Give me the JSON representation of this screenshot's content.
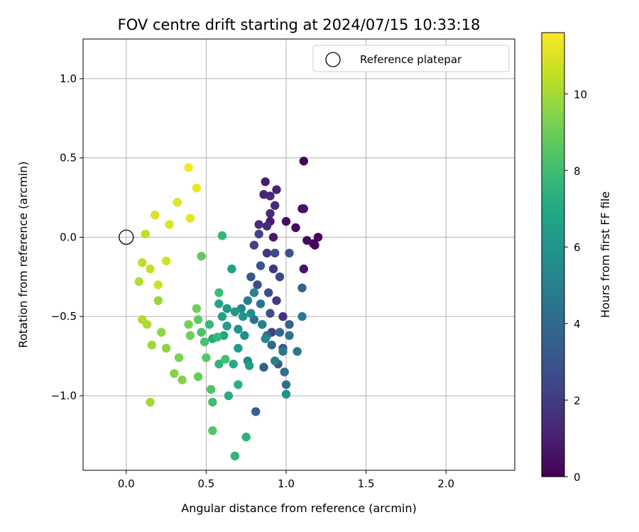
{
  "chart_data": {
    "type": "scatter",
    "title": "FOV centre drift starting at 2024/07/15 10:33:18",
    "xlabel": "Angular distance from reference (arcmin)",
    "ylabel": "Rotation from reference (arcmin)",
    "xlim": [
      -0.27,
      2.43
    ],
    "ylim": [
      -1.47,
      1.25
    ],
    "xticks": [
      0.0,
      0.5,
      1.0,
      1.5,
      2.0
    ],
    "xtick_labels": [
      "0.0",
      "0.5",
      "1.0",
      "1.5",
      "2.0"
    ],
    "yticks": [
      1.0,
      0.5,
      0.0,
      -0.5,
      -1.0
    ],
    "ytick_labels": [
      "1.0",
      "0.5",
      "0.0",
      "−0.5",
      "−1.0"
    ],
    "grid": true,
    "legend": {
      "position": "top-right",
      "entries": [
        "Reference platepar"
      ]
    },
    "colorbar": {
      "label": "Hours from first FF file",
      "range": [
        0,
        11.6
      ],
      "ticks": [
        0,
        2,
        4,
        6,
        8,
        10
      ],
      "tick_labels": [
        "0",
        "2",
        "4",
        "6",
        "8",
        "10"
      ],
      "colormap": "viridis"
    },
    "reference_point": {
      "x": 0.0,
      "y": 0.0
    },
    "points": [
      [
        1.11,
        0.48,
        0.1
      ],
      [
        1.2,
        0.0,
        0.1
      ],
      [
        1.17,
        -0.04,
        0.2
      ],
      [
        1.18,
        -0.05,
        0.2
      ],
      [
        1.13,
        -0.02,
        0.3
      ],
      [
        1.06,
        0.06,
        0.3
      ],
      [
        1.0,
        0.1,
        0.4
      ],
      [
        1.1,
        0.18,
        0.5
      ],
      [
        1.11,
        0.18,
        0.6
      ],
      [
        1.11,
        -0.2,
        0.7
      ],
      [
        0.92,
        0.0,
        0.8
      ],
      [
        0.9,
        0.1,
        0.9
      ],
      [
        0.87,
        0.35,
        1.0
      ],
      [
        0.94,
        0.3,
        1.1
      ],
      [
        0.86,
        0.27,
        1.2
      ],
      [
        0.9,
        0.26,
        1.3
      ],
      [
        0.93,
        0.2,
        1.4
      ],
      [
        0.9,
        0.15,
        1.4
      ],
      [
        0.88,
        0.07,
        1.5
      ],
      [
        0.83,
        0.08,
        1.6
      ],
      [
        0.98,
        -0.5,
        1.6
      ],
      [
        0.88,
        -0.1,
        1.7
      ],
      [
        0.92,
        -0.2,
        1.8
      ],
      [
        0.85,
        -0.55,
        1.9
      ],
      [
        0.94,
        -0.4,
        2.0
      ],
      [
        0.91,
        -0.6,
        2.1
      ],
      [
        0.8,
        -0.05,
        2.2
      ],
      [
        0.83,
        0.02,
        2.3
      ],
      [
        0.96,
        -0.25,
        2.4
      ],
      [
        0.93,
        -0.1,
        2.5
      ],
      [
        0.89,
        -0.35,
        2.6
      ],
      [
        0.82,
        -0.3,
        2.7
      ],
      [
        0.9,
        -0.48,
        2.8
      ],
      [
        0.98,
        -0.7,
        2.9
      ],
      [
        1.02,
        -0.1,
        3.0
      ],
      [
        0.84,
        -0.18,
        3.1
      ],
      [
        0.78,
        -0.25,
        3.2
      ],
      [
        0.95,
        -0.8,
        3.3
      ],
      [
        0.86,
        -0.82,
        3.4
      ],
      [
        0.81,
        -1.1,
        3.5
      ],
      [
        1.1,
        -0.32,
        3.6
      ],
      [
        1.02,
        -0.55,
        3.7
      ],
      [
        0.96,
        -0.6,
        3.8
      ],
      [
        0.88,
        -0.62,
        3.9
      ],
      [
        0.91,
        -0.68,
        4.0
      ],
      [
        0.99,
        -0.85,
        4.1
      ],
      [
        1.0,
        -0.93,
        4.2
      ],
      [
        1.02,
        -0.62,
        4.3
      ],
      [
        0.8,
        -0.52,
        4.4
      ],
      [
        0.84,
        -0.42,
        4.5
      ],
      [
        1.07,
        -0.72,
        4.6
      ],
      [
        0.98,
        -0.72,
        4.7
      ],
      [
        1.1,
        -0.5,
        4.8
      ],
      [
        0.76,
        -0.4,
        4.9
      ],
      [
        0.93,
        -0.78,
        5.0
      ],
      [
        0.85,
        -0.55,
        5.1
      ],
      [
        0.8,
        -0.35,
        5.2
      ],
      [
        0.72,
        -0.45,
        5.3
      ],
      [
        0.87,
        -0.64,
        5.4
      ],
      [
        0.76,
        -0.78,
        5.5
      ],
      [
        0.74,
        -0.62,
        5.6
      ],
      [
        0.78,
        -0.48,
        5.7
      ],
      [
        1.0,
        -0.99,
        5.8
      ],
      [
        0.7,
        -0.58,
        5.9
      ],
      [
        0.73,
        -0.5,
        6.0
      ],
      [
        0.68,
        -0.47,
        6.1
      ],
      [
        0.63,
        -0.45,
        6.2
      ],
      [
        0.63,
        -0.56,
        6.3
      ],
      [
        0.7,
        -0.7,
        6.4
      ],
      [
        0.77,
        -0.81,
        6.5
      ],
      [
        0.6,
        -0.5,
        6.6
      ],
      [
        0.66,
        -0.2,
        6.7
      ],
      [
        0.58,
        -0.42,
        6.8
      ],
      [
        0.61,
        -0.62,
        6.9
      ],
      [
        0.54,
        -0.64,
        7.0
      ],
      [
        0.67,
        -0.8,
        7.1
      ],
      [
        0.64,
        -1.0,
        7.2
      ],
      [
        0.7,
        -0.93,
        7.3
      ],
      [
        0.75,
        -1.26,
        7.4
      ],
      [
        0.68,
        -1.38,
        7.5
      ],
      [
        0.58,
        -0.8,
        7.5
      ],
      [
        0.6,
        0.01,
        7.6
      ],
      [
        0.52,
        -0.55,
        7.7
      ],
      [
        0.57,
        -0.63,
        7.8
      ],
      [
        0.58,
        -0.35,
        7.9
      ],
      [
        0.54,
        -1.04,
        8.0
      ],
      [
        0.62,
        -0.77,
        8.1
      ],
      [
        0.49,
        -0.66,
        8.2
      ],
      [
        0.47,
        -0.6,
        8.3
      ],
      [
        0.53,
        -0.96,
        8.4
      ],
      [
        0.54,
        -1.22,
        8.5
      ],
      [
        0.5,
        -0.76,
        8.6
      ],
      [
        0.45,
        -0.52,
        8.7
      ],
      [
        0.47,
        -0.12,
        8.8
      ],
      [
        0.45,
        -0.88,
        8.9
      ],
      [
        0.44,
        -0.45,
        9.0
      ],
      [
        0.4,
        -0.62,
        9.1
      ],
      [
        0.39,
        -0.55,
        9.2
      ],
      [
        0.33,
        -0.76,
        9.3
      ],
      [
        0.35,
        -0.9,
        9.4
      ],
      [
        0.3,
        -0.86,
        9.5
      ],
      [
        0.25,
        -0.7,
        9.6
      ],
      [
        0.22,
        -0.6,
        9.7
      ],
      [
        0.2,
        -0.4,
        9.8
      ],
      [
        0.16,
        -0.68,
        9.9
      ],
      [
        0.15,
        -1.04,
        10.0
      ],
      [
        0.13,
        -0.55,
        10.1
      ],
      [
        0.1,
        -0.52,
        10.2
      ],
      [
        0.08,
        -0.28,
        10.3
      ],
      [
        0.1,
        -0.16,
        10.4
      ],
      [
        0.12,
        0.02,
        10.5
      ],
      [
        0.15,
        -0.2,
        10.6
      ],
      [
        0.2,
        -0.3,
        10.7
      ],
      [
        0.25,
        -0.15,
        10.8
      ],
      [
        0.18,
        0.14,
        10.9
      ],
      [
        0.27,
        0.08,
        11.0
      ],
      [
        0.32,
        0.22,
        11.1
      ],
      [
        0.4,
        0.12,
        11.2
      ],
      [
        0.44,
        0.31,
        11.3
      ],
      [
        0.39,
        0.44,
        11.5
      ]
    ]
  }
}
